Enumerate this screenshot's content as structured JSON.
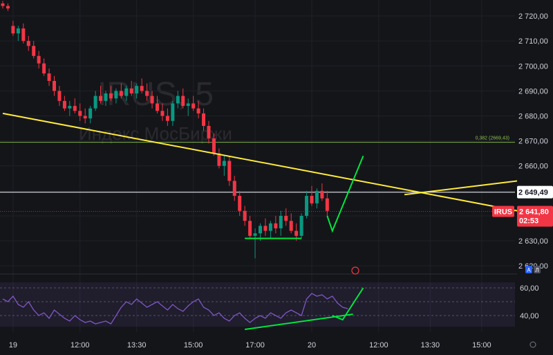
{
  "chart_data": [
    {
      "type": "candlestick",
      "symbol": "IRUS",
      "interval": "5",
      "description": "Индекс МосБиржи",
      "ylim": [
        2617,
        2725
      ],
      "y_ticks": [
        "2 720,00",
        "2 710,00",
        "2 700,00",
        "2 690,00",
        "2 680,00",
        "2 670,00",
        "2 660,00",
        "2 650,00",
        "2 640,00",
        "2 630,00",
        "2 620,00"
      ],
      "y_tick_values": [
        2720,
        2710,
        2700,
        2690,
        2680,
        2670,
        2660,
        2650,
        2640,
        2630,
        2620
      ],
      "x_ticks": [
        {
          "label": "19",
          "bar": 2
        },
        {
          "label": "12:00",
          "bar": 15
        },
        {
          "label": "13:30",
          "bar": 26
        },
        {
          "label": "15:00",
          "bar": 37
        },
        {
          "label": "17:00",
          "bar": 49
        },
        {
          "label": "20",
          "bar": 60
        },
        {
          "label": "12:00",
          "bar": 73
        },
        {
          "label": "13:30",
          "bar": 83
        },
        {
          "label": "15:00",
          "bar": 93
        }
      ],
      "bar_count": 100,
      "candles": [
        [
          2725,
          2726,
          2723,
          2724
        ],
        [
          2724,
          2725,
          2722,
          2723
        ],
        [
          2716,
          2718,
          2712,
          2713
        ],
        [
          2713,
          2716,
          2710,
          2715
        ],
        [
          2715,
          2717,
          2709,
          2710
        ],
        [
          2710,
          2712,
          2706,
          2708
        ],
        [
          2708,
          2710,
          2703,
          2704
        ],
        [
          2704,
          2706,
          2699,
          2701
        ],
        [
          2701,
          2703,
          2696,
          2697
        ],
        [
          2697,
          2699,
          2692,
          2694
        ],
        [
          2694,
          2696,
          2688,
          2690
        ],
        [
          2690,
          2692,
          2684,
          2686
        ],
        [
          2686,
          2688,
          2682,
          2683
        ],
        [
          2683,
          2686,
          2680,
          2684
        ],
        [
          2684,
          2687,
          2681,
          2682
        ],
        [
          2682,
          2685,
          2678,
          2680
        ],
        [
          2680,
          2683,
          2677,
          2679
        ],
        [
          2679,
          2684,
          2677,
          2683
        ],
        [
          2683,
          2690,
          2682,
          2688
        ],
        [
          2688,
          2692,
          2685,
          2686
        ],
        [
          2686,
          2690,
          2684,
          2689
        ],
        [
          2689,
          2692,
          2686,
          2687
        ],
        [
          2687,
          2691,
          2685,
          2690
        ],
        [
          2690,
          2693,
          2687,
          2688
        ],
        [
          2688,
          2692,
          2686,
          2691
        ],
        [
          2691,
          2694,
          2688,
          2689
        ],
        [
          2689,
          2693,
          2687,
          2692
        ],
        [
          2692,
          2695,
          2689,
          2690
        ],
        [
          2690,
          2693,
          2686,
          2688
        ],
        [
          2688,
          2690,
          2683,
          2685
        ],
        [
          2685,
          2688,
          2681,
          2682
        ],
        [
          2682,
          2685,
          2678,
          2680
        ],
        [
          2680,
          2683,
          2676,
          2678
        ],
        [
          2678,
          2686,
          2676,
          2685
        ],
        [
          2685,
          2690,
          2683,
          2688
        ],
        [
          2688,
          2691,
          2683,
          2684
        ],
        [
          2684,
          2687,
          2680,
          2685
        ],
        [
          2685,
          2688,
          2682,
          2683
        ],
        [
          2683,
          2686,
          2679,
          2681
        ],
        [
          2681,
          2683,
          2674,
          2676
        ],
        [
          2676,
          2678,
          2669,
          2671
        ],
        [
          2671,
          2673,
          2664,
          2665
        ],
        [
          2665,
          2667,
          2659,
          2660
        ],
        [
          2660,
          2664,
          2656,
          2662
        ],
        [
          2662,
          2664,
          2652,
          2654
        ],
        [
          2654,
          2656,
          2646,
          2648
        ],
        [
          2648,
          2650,
          2640,
          2642
        ],
        [
          2642,
          2644,
          2636,
          2638
        ],
        [
          2638,
          2640,
          2631,
          2632
        ],
        [
          2632,
          2635,
          2623,
          2633
        ],
        [
          2633,
          2637,
          2630,
          2636
        ],
        [
          2636,
          2639,
          2632,
          2634
        ],
        [
          2634,
          2638,
          2631,
          2637
        ],
        [
          2637,
          2640,
          2633,
          2635
        ],
        [
          2635,
          2642,
          2632,
          2640
        ],
        [
          2640,
          2643,
          2636,
          2638
        ],
        [
          2638,
          2641,
          2633,
          2634
        ],
        [
          2634,
          2637,
          2630,
          2632
        ],
        [
          2632,
          2641,
          2631,
          2640
        ],
        [
          2640,
          2650,
          2639,
          2648
        ],
        [
          2648,
          2652,
          2644,
          2645
        ],
        [
          2645,
          2651,
          2643,
          2650
        ],
        [
          2650,
          2653,
          2646,
          2647
        ],
        [
          2647,
          2650,
          2640,
          2642
        ]
      ],
      "lines": [
        {
          "name": "trendline-down",
          "color": "#ffeb3b",
          "from": {
            "bar": 0,
            "price": 2681
          },
          "to": {
            "bar": 100,
            "price": 2642
          }
        },
        {
          "name": "trendline-up",
          "color": "#ffeb3b",
          "from": {
            "bar": 78,
            "price": 2648.5
          },
          "to": {
            "bar": 100,
            "price": 2654
          }
        },
        {
          "name": "support-line",
          "color": "#00e640",
          "from": {
            "bar": 47,
            "price": 2631
          },
          "to": {
            "bar": 58,
            "price": 2631
          }
        },
        {
          "name": "fib-line",
          "color": "#8bc34a",
          "price": 2669.43,
          "label": "0,382 (2669,43)"
        },
        {
          "name": "current-price-line",
          "color": "#d1d4dc",
          "price": 2649.49
        }
      ],
      "projection": {
        "color": "#00e640",
        "points": [
          {
            "bar": 63,
            "price": 2640
          },
          {
            "bar": 64,
            "price": 2634
          },
          {
            "bar": 70,
            "price": 2664
          }
        ]
      },
      "price_tags": [
        {
          "name": "crosshair-price",
          "text": "2 649,49",
          "price": 2649.49,
          "bg": "#ffffff",
          "fg": "#131722"
        },
        {
          "name": "last-price",
          "symbol": "IRUS",
          "text": "2 641,80",
          "countdown": "02:53",
          "price": 2641.8,
          "bg": "#f23645",
          "fg": "#ffffff"
        }
      ],
      "badges": [
        "A",
        "Л"
      ]
    },
    {
      "type": "line",
      "name": "RSI",
      "ylim": [
        28,
        68
      ],
      "y_ticks": [
        "60,00",
        "40,00"
      ],
      "y_tick_values": [
        60,
        40
      ],
      "band": [
        60,
        40
      ],
      "color": "#7e57c2",
      "values": [
        52,
        50,
        54,
        48,
        46,
        50,
        44,
        40,
        42,
        38,
        44,
        41,
        38,
        36,
        40,
        37,
        35,
        36,
        34,
        35,
        36,
        34,
        40,
        46,
        50,
        48,
        52,
        49,
        46,
        48,
        50,
        47,
        44,
        48,
        45,
        43,
        47,
        50,
        52,
        46,
        44,
        40,
        42,
        38,
        36,
        40,
        42,
        38,
        35,
        38,
        40,
        38,
        42,
        40,
        38,
        42,
        44,
        42,
        40,
        52,
        56,
        54,
        55,
        52,
        54,
        49,
        46,
        45
      ],
      "trendline": {
        "color": "#00e640",
        "from": {
          "i": 47,
          "v": 30
        },
        "to": {
          "i": 68,
          "v": 41
        }
      },
      "projection": {
        "color": "#00e640",
        "points": [
          {
            "i": 64,
            "v": 40
          },
          {
            "i": 66,
            "v": 37
          },
          {
            "i": 70,
            "v": 60
          }
        ]
      }
    }
  ]
}
